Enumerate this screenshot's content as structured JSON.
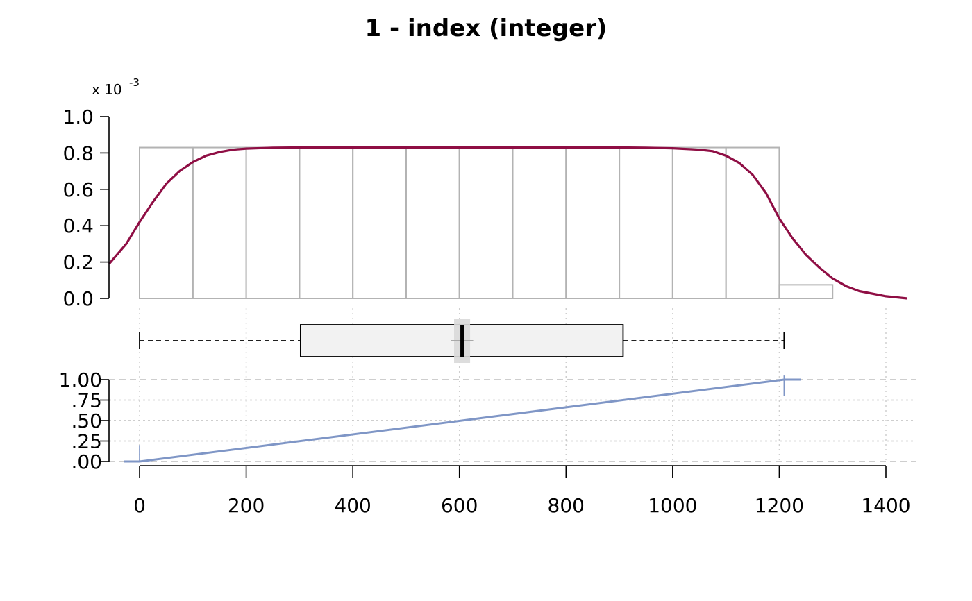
{
  "title": "1 - index (integer)",
  "density_multiplier": {
    "base": "x 10",
    "exponent": "-3"
  },
  "colors": {
    "density_line": "#8f0e44",
    "histogram": "#b3b3b3",
    "box_fill": "#f2f2f2",
    "median_ci": "#d9d9d9",
    "ecdf_line": "#7f96c6",
    "grid": "#bdbdbd"
  },
  "chart_data": [
    {
      "type": "histogram",
      "panel": "density",
      "bins": [
        {
          "from": 0,
          "to": 100,
          "density": 0.83
        },
        {
          "from": 100,
          "to": 200,
          "density": 0.83
        },
        {
          "from": 200,
          "to": 300,
          "density": 0.83
        },
        {
          "from": 300,
          "to": 400,
          "density": 0.83
        },
        {
          "from": 400,
          "to": 500,
          "density": 0.83
        },
        {
          "from": 500,
          "to": 600,
          "density": 0.83
        },
        {
          "from": 600,
          "to": 700,
          "density": 0.83
        },
        {
          "from": 700,
          "to": 800,
          "density": 0.83
        },
        {
          "from": 800,
          "to": 900,
          "density": 0.83
        },
        {
          "from": 900,
          "to": 1000,
          "density": 0.83
        },
        {
          "from": 1000,
          "to": 1100,
          "density": 0.83
        },
        {
          "from": 1100,
          "to": 1200,
          "density": 0.83
        },
        {
          "from": 1200,
          "to": 1300,
          "density": 0.075
        }
      ],
      "density_curve": {
        "x": [
          -57,
          -25,
          0,
          25,
          50,
          75,
          100,
          125,
          150,
          175,
          200,
          250,
          300,
          600,
          900,
          950,
          1000,
          1050,
          1075,
          1100,
          1125,
          1150,
          1175,
          1200,
          1225,
          1250,
          1275,
          1300,
          1325,
          1350,
          1400,
          1440
        ],
        "y": [
          0.19,
          0.3,
          0.42,
          0.53,
          0.63,
          0.7,
          0.75,
          0.785,
          0.805,
          0.818,
          0.824,
          0.829,
          0.83,
          0.83,
          0.83,
          0.829,
          0.826,
          0.818,
          0.81,
          0.785,
          0.745,
          0.68,
          0.58,
          0.44,
          0.33,
          0.24,
          0.17,
          0.11,
          0.068,
          0.04,
          0.012,
          0.0
        ]
      },
      "yticks": [
        "0.0",
        "0.2",
        "0.4",
        "0.6",
        "0.8",
        "1.0"
      ],
      "ylim": [
        0,
        1.0
      ]
    },
    {
      "type": "boxplot",
      "panel": "box",
      "whisker_low": 0,
      "q1": 302,
      "median": 605,
      "mean": 605,
      "q3": 907,
      "whisker_high": 1209,
      "median_ci": [
        590,
        620
      ]
    },
    {
      "type": "line",
      "panel": "ecdf",
      "x": [
        -30,
        0,
        1209,
        1240
      ],
      "y": [
        0,
        0,
        1,
        1
      ],
      "yticks": [
        "1.00",
        ".75",
        ".50",
        ".25",
        ".00"
      ],
      "ytick_values": [
        1.0,
        0.75,
        0.5,
        0.25,
        0.0
      ],
      "ylim": [
        0,
        1
      ]
    }
  ],
  "x_axis": {
    "ticks": [
      "0",
      "200",
      "400",
      "600",
      "800",
      "1000",
      "1200",
      "1400"
    ],
    "tick_values": [
      0,
      200,
      400,
      600,
      800,
      1000,
      1200,
      1400
    ],
    "xlim": [
      -57,
      1440
    ]
  }
}
